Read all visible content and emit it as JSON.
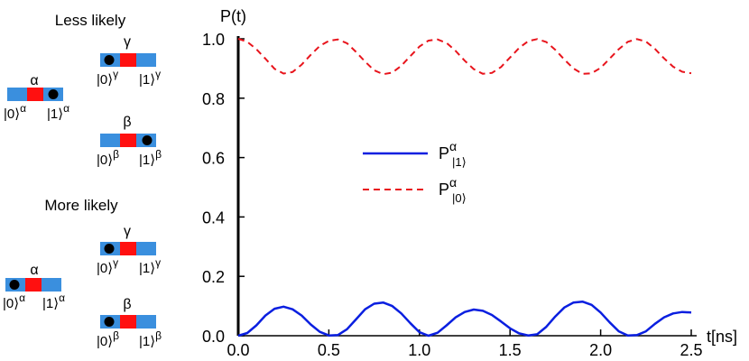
{
  "schematic": {
    "less_likely": {
      "heading": "Less likely",
      "alpha": {
        "label": "α",
        "left_state": "|0⟩",
        "left_sup": "α",
        "right_state": "|1⟩",
        "right_sup": "α",
        "particle": "right"
      },
      "gamma": {
        "label": "γ",
        "left_state": "|0⟩",
        "left_sup": "γ",
        "right_state": "|1⟩",
        "right_sup": "γ",
        "particle": "left"
      },
      "beta": {
        "label": "β",
        "left_state": "|0⟩",
        "left_sup": "β",
        "right_state": "|1⟩",
        "right_sup": "β",
        "particle": "right"
      }
    },
    "more_likely": {
      "heading": "More likely",
      "alpha": {
        "label": "α",
        "left_state": "|0⟩",
        "left_sup": "α",
        "right_state": "|1⟩",
        "right_sup": "α",
        "particle": "left"
      },
      "gamma": {
        "label": "γ",
        "left_state": "|0⟩",
        "left_sup": "γ",
        "right_state": "|1⟩",
        "right_sup": "γ",
        "particle": "left"
      },
      "beta": {
        "label": "β",
        "left_state": "|0⟩",
        "left_sup": "β",
        "right_state": "|1⟩",
        "right_sup": "β",
        "particle": "left"
      }
    },
    "colors": {
      "well": "#3a8fde",
      "barrier": "#ff1010",
      "particle": "#000000"
    }
  },
  "chart_data": {
    "type": "line",
    "title": "",
    "xlabel": "t[ns]",
    "ylabel": "P(t)",
    "xlim": [
      0,
      2.5
    ],
    "ylim": [
      0,
      1.0
    ],
    "xticks": [
      "0.0",
      "0.5",
      "1.0",
      "1.5",
      "2.0",
      "2.5"
    ],
    "yticks": [
      "0.0",
      "0.2",
      "0.4",
      "0.6",
      "0.8",
      "1.0"
    ],
    "grid": false,
    "legend_position": "center",
    "series": [
      {
        "name_main": "P",
        "name_sub": "|1⟩",
        "name_sup": "α",
        "color": "#0a1fe0",
        "dash": "solid",
        "x": [
          0,
          0.05,
          0.1,
          0.15,
          0.2,
          0.25,
          0.3,
          0.35,
          0.4,
          0.45,
          0.5,
          0.55,
          0.6,
          0.65,
          0.7,
          0.75,
          0.8,
          0.85,
          0.9,
          0.95,
          1.0,
          1.05,
          1.1,
          1.15,
          1.2,
          1.25,
          1.3,
          1.35,
          1.4,
          1.45,
          1.5,
          1.55,
          1.6,
          1.65,
          1.7,
          1.75,
          1.8,
          1.85,
          1.9,
          1.95,
          2.0,
          2.05,
          2.1,
          2.15,
          2.2,
          2.25,
          2.3,
          2.35,
          2.4,
          2.45,
          2.5
        ],
        "y": [
          0,
          0.009,
          0.035,
          0.068,
          0.091,
          0.098,
          0.089,
          0.068,
          0.038,
          0.013,
          0.001,
          0.002,
          0.022,
          0.055,
          0.089,
          0.108,
          0.112,
          0.1,
          0.075,
          0.042,
          0.012,
          0.0,
          0.01,
          0.035,
          0.062,
          0.08,
          0.088,
          0.084,
          0.07,
          0.048,
          0.025,
          0.008,
          0.001,
          0.005,
          0.03,
          0.065,
          0.095,
          0.112,
          0.115,
          0.104,
          0.078,
          0.045,
          0.015,
          0.001,
          0.002,
          0.015,
          0.04,
          0.062,
          0.075,
          0.08,
          0.078
        ]
      },
      {
        "name_main": "P",
        "name_sub": "|0⟩",
        "name_sup": "α",
        "color": "#e8141c",
        "dash": "dashed",
        "x": [
          0,
          0.05,
          0.1,
          0.15,
          0.2,
          0.25,
          0.3,
          0.35,
          0.4,
          0.45,
          0.5,
          0.55,
          0.6,
          0.65,
          0.7,
          0.75,
          0.8,
          0.85,
          0.9,
          0.95,
          1.0,
          1.05,
          1.1,
          1.15,
          1.2,
          1.25,
          1.3,
          1.35,
          1.4,
          1.45,
          1.5,
          1.55,
          1.6,
          1.65,
          1.7,
          1.75,
          1.8,
          1.85,
          1.9,
          1.95,
          2.0,
          2.05,
          2.1,
          2.15,
          2.2,
          2.25,
          2.3,
          2.35,
          2.4,
          2.45,
          2.5
        ],
        "y": [
          1.0,
          0.99,
          0.965,
          0.933,
          0.899,
          0.883,
          0.888,
          0.913,
          0.946,
          0.976,
          0.993,
          0.998,
          0.985,
          0.956,
          0.923,
          0.894,
          0.881,
          0.886,
          0.909,
          0.942,
          0.974,
          0.994,
          0.998,
          0.986,
          0.959,
          0.926,
          0.898,
          0.882,
          0.885,
          0.905,
          0.937,
          0.969,
          0.992,
          0.999,
          0.989,
          0.963,
          0.93,
          0.9,
          0.882,
          0.884,
          0.902,
          0.933,
          0.965,
          0.99,
          0.999,
          0.991,
          0.966,
          0.934,
          0.906,
          0.889,
          0.884
        ]
      }
    ]
  }
}
